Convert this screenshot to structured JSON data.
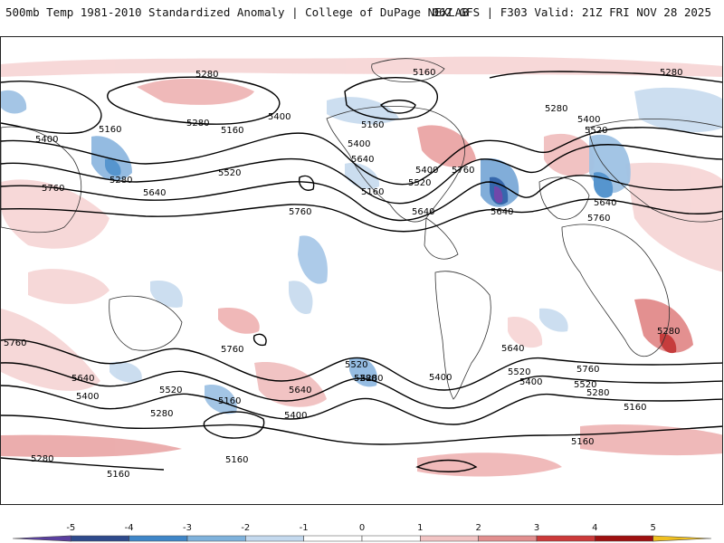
{
  "header": {
    "left_title": "500mb Temp 1981-2010 Standardized Anomaly | College of DuPage NEXLAB",
    "right_title": "06Z GFS | F303 Valid: 21Z FRI NOV 28 2025"
  },
  "map": {
    "field": "500mb Temp Standardized Anomaly",
    "contour_labels": [
      "5280",
      "5160",
      "5280",
      "5400",
      "5160",
      "5280",
      "5400",
      "5160",
      "5400",
      "5280",
      "5520",
      "5640",
      "5760",
      "5640",
      "5760",
      "5520",
      "5280",
      "5640",
      "5520",
      "5160",
      "5400",
      "5640",
      "5760",
      "5400",
      "5760",
      "5640",
      "5760",
      "5520",
      "5280",
      "5520",
      "5400",
      "5640",
      "5520",
      "5280",
      "5760",
      "5400",
      "5160",
      "5160",
      "5280",
      "5760",
      "5640",
      "5400",
      "5520",
      "5280",
      "5160",
      "5400",
      "5160",
      "5160",
      "5160",
      "5280",
      "5640",
      "5280"
    ]
  },
  "colorbar": {
    "ticks": [
      "-5",
      "-4",
      "-3",
      "-2",
      "-1",
      "0",
      "1",
      "2",
      "3",
      "4",
      "5"
    ],
    "colors": [
      "#5a3fa0",
      "#2e4a8c",
      "#3f86c8",
      "#7fb2dc",
      "#c4d9ee",
      "#ffffff",
      "#ffffff",
      "#f2c4c4",
      "#e28f8f",
      "#cc3a3a",
      "#9e1010",
      "#f0c020"
    ]
  }
}
